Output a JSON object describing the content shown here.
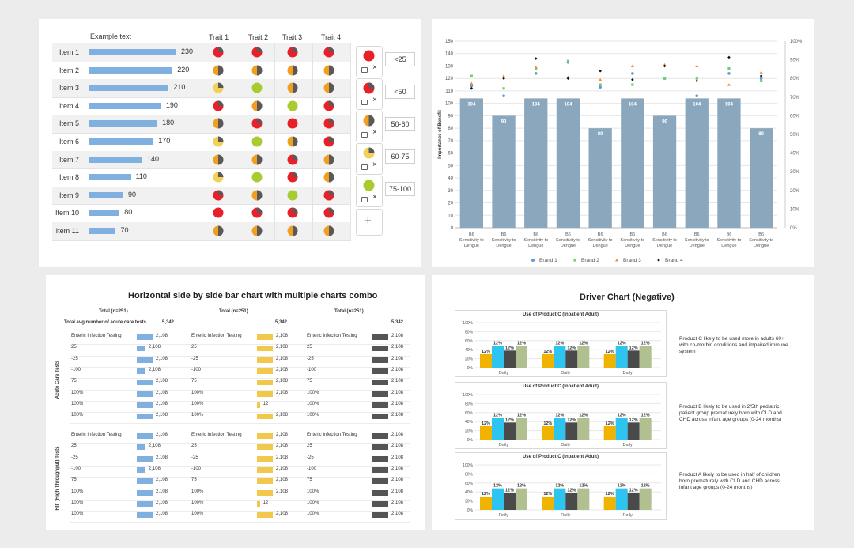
{
  "colors": {
    "bar_blue": "#7fb0e0",
    "red": "#e8202a",
    "orange": "#f0a020",
    "yellow": "#f2d05a",
    "green": "#a8cc30",
    "gray": "#595959",
    "mid_bar": "#8aa7be",
    "mid_brand1": "#5b9bd5",
    "mid_brand2": "#70d070",
    "mid_brand3": "#f08c40",
    "mid_brand4": "#111111",
    "hbar_blue": "#7fb0e0",
    "hbar_yellow": "#f2c84b",
    "hbar_dark": "#555555",
    "drv_yellow": "#f0b400",
    "drv_cyan": "#2ec4f0",
    "drv_dark": "#4a4a4a",
    "drv_sage": "#b0c090"
  },
  "panel1": {
    "header": "Example text",
    "trait_headers": [
      "Trait 1",
      "Trait 2",
      "Trait 3",
      "Trait 4"
    ],
    "rows": [
      {
        "label": "Item 1",
        "value": 230,
        "traits": [
          "dark-red",
          "dark-red",
          "dark-red",
          "dark-red"
        ]
      },
      {
        "label": "Item 2",
        "value": 220,
        "traits": [
          "gray-orange",
          "gray-orange",
          "gray-orange",
          "gray-orange"
        ]
      },
      {
        "label": "Item 3",
        "value": 210,
        "traits": [
          "yellow-gray",
          "green",
          "gray-orange",
          "gray-orange"
        ]
      },
      {
        "label": "Item 4",
        "value": 190,
        "traits": [
          "dark-red",
          "gray-orange",
          "green",
          "dark-red"
        ]
      },
      {
        "label": "Item 5",
        "value": 180,
        "traits": [
          "gray-orange",
          "dark-red",
          "red",
          "dark-red"
        ]
      },
      {
        "label": "Item 6",
        "value": 170,
        "traits": [
          "yellow-gray",
          "green",
          "gray-orange",
          "dark-red"
        ]
      },
      {
        "label": "Item 7",
        "value": 140,
        "traits": [
          "gray-orange",
          "gray-orange",
          "dark-red",
          "gray-orange"
        ]
      },
      {
        "label": "Item 8",
        "value": 110,
        "traits": [
          "yellow-gray",
          "green",
          "dark-red",
          "gray-orange"
        ]
      },
      {
        "label": "Item 9",
        "value": 90,
        "traits": [
          "dark-red",
          "gray-orange",
          "green",
          "dark-red"
        ]
      },
      {
        "label": "Item 10",
        "value": 80,
        "traits": [
          "red",
          "dark-red",
          "dark-red",
          "dark-red"
        ]
      },
      {
        "label": "Item 11",
        "value": 70,
        "traits": [
          "gray-orange",
          "gray-orange",
          "gray-orange",
          "gray-orange"
        ]
      }
    ],
    "legend": [
      {
        "range": "<25",
        "pie": "red"
      },
      {
        "range": "<50",
        "pie": "dark-red"
      },
      {
        "range": "50-60",
        "pie": "gray-orange"
      },
      {
        "range": "60-75",
        "pie": "yellow-gray"
      },
      {
        "range": "75-100",
        "pie": "green"
      }
    ],
    "add_symbol": "+"
  },
  "chart_data": [
    {
      "type": "bar",
      "title": "",
      "ylabel": "Importance of Benefit",
      "ylim": [
        0,
        150
      ],
      "y2lim": [
        0,
        100
      ],
      "yticks": [
        "0",
        "10",
        "20",
        "30",
        "40",
        "50",
        "60",
        "70",
        "80",
        "90",
        "100",
        "110",
        "120",
        "130",
        "140",
        "150"
      ],
      "y2ticks": [
        "0%",
        "10%",
        "20%",
        "30%",
        "40%",
        "50%",
        "60%",
        "70%",
        "80%",
        "90%",
        "100%"
      ],
      "categories": [
        "B6 Sensitivity to Dengue",
        "B6 Sensitivity to Dengue",
        "B6 Sensitivity to Dengue",
        "B6 Sensitivity to Dengue",
        "B6 Sensitivity to Dengue",
        "B6 Sensitivity to Dengue",
        "B6 Sensitivity to Dengue",
        "B6 Sensitivity to Dengue",
        "B6 Sensitivity to Dengue",
        "B6 Sensitivity to Dengue"
      ],
      "values": [
        104,
        90,
        104,
        104,
        80,
        104,
        90,
        104,
        104,
        80
      ],
      "scatter_series": [
        {
          "name": "Brand 1",
          "values": [
            114,
            106,
            124,
            133,
            113,
            124,
            120,
            106,
            124,
            120
          ]
        },
        {
          "name": "Brand 2",
          "values": [
            122,
            112,
            128,
            134,
            115,
            115,
            120,
            120,
            128,
            118
          ]
        },
        {
          "name": "Brand 3",
          "values": [
            116,
            122,
            129,
            121,
            119,
            130,
            131,
            130,
            115,
            125
          ]
        },
        {
          "name": "Brand 4",
          "values": [
            112,
            120,
            136,
            120,
            126,
            119,
            130,
            118,
            137,
            122
          ]
        }
      ],
      "legend": [
        "Brand 1",
        "Brand 2",
        "Brand 3",
        "Brand 4"
      ],
      "legend_position": "bottom"
    },
    {
      "type": "bar",
      "title": "Use of Product C (Inpatient Adult)",
      "categories": [
        "Daily",
        "Daily",
        "Daily"
      ],
      "series": [
        {
          "values": [
            12,
            12,
            12
          ]
        },
        {
          "values": [
            12,
            12,
            12
          ]
        },
        {
          "values": [
            12,
            12,
            12
          ]
        },
        {
          "values": [
            12,
            12,
            12
          ]
        }
      ],
      "yticks": [
        "0%",
        "20%",
        "40%",
        "60%",
        "80%",
        "100%"
      ],
      "ylim": [
        0,
        100
      ]
    },
    {
      "type": "bar",
      "title": "Use of Product C (Inpatient Adult)",
      "categories": [
        "Daily",
        "Daily",
        "Daily"
      ],
      "series": [
        {
          "values": [
            12,
            12,
            12
          ]
        },
        {
          "values": [
            12,
            12,
            12
          ]
        },
        {
          "values": [
            12,
            12,
            12
          ]
        },
        {
          "values": [
            12,
            12,
            12
          ]
        }
      ],
      "yticks": [
        "0%",
        "20%",
        "40%",
        "60%",
        "80%",
        "100%"
      ],
      "ylim": [
        0,
        100
      ]
    },
    {
      "type": "bar",
      "title": "Use of Product C (Inpatient Adult)",
      "categories": [
        "Daily",
        "Daily",
        "Daily"
      ],
      "series": [
        {
          "values": [
            12,
            12,
            12
          ]
        },
        {
          "values": [
            12,
            12,
            12
          ]
        },
        {
          "values": [
            12,
            12,
            12
          ]
        },
        {
          "values": [
            12,
            12,
            12
          ]
        }
      ],
      "yticks": [
        "0%",
        "20%",
        "40%",
        "60%",
        "80%",
        "100%"
      ],
      "ylim": [
        0,
        100
      ]
    }
  ],
  "panel3": {
    "title": "Horizontal side by side bar chart with multiple charts combo",
    "total_label": "Total",
    "n_label": "(n=251)",
    "total_avg_label": "Total avg number of acute care tests",
    "total_avg_value": "5,342",
    "groups": [
      {
        "name": "Acute Care Tests",
        "rows": [
          {
            "label": "Enteric Infection Testing",
            "values": [
              "2,108",
              "2,108",
              "2,108"
            ],
            "fracs": [
              0.55,
              0.55,
              0.55
            ]
          },
          {
            "label": "25",
            "values": [
              "2,108",
              "2,108",
              "2,108"
            ],
            "fracs": [
              0.3,
              0.55,
              0.55
            ]
          },
          {
            "label": "-25",
            "values": [
              "2,108",
              "2,108",
              "2,108"
            ],
            "fracs": [
              0.55,
              0.55,
              0.55
            ]
          },
          {
            "label": "-100",
            "values": [
              "2,108",
              "2,108",
              "2,108"
            ],
            "fracs": [
              0.3,
              0.55,
              0.55
            ]
          },
          {
            "label": "75",
            "values": [
              "2,108",
              "2,108",
              "2,108"
            ],
            "fracs": [
              0.55,
              0.55,
              0.55
            ]
          },
          {
            "label": "100%",
            "values": [
              "2,108",
              "2,108",
              "2,108"
            ],
            "fracs": [
              0.55,
              0.55,
              0.55
            ]
          },
          {
            "label": "100%",
            "values": [
              "2,108",
              "12",
              "2,108"
            ],
            "fracs": [
              0.55,
              0.1,
              0.55
            ]
          },
          {
            "label": "100%",
            "values": [
              "2,108",
              "2,108",
              "2,108"
            ],
            "fracs": [
              0.55,
              0.55,
              0.55
            ]
          }
        ]
      },
      {
        "name": "HIT (High Throughput) Tests",
        "rows": [
          {
            "label": "Enteric Infection Testing",
            "values": [
              "2,108",
              "2,108",
              "2,108"
            ],
            "fracs": [
              0.55,
              0.55,
              0.55
            ]
          },
          {
            "label": "25",
            "values": [
              "2,108",
              "2,108",
              "2,108"
            ],
            "fracs": [
              0.3,
              0.55,
              0.55
            ]
          },
          {
            "label": "-25",
            "values": [
              "2,108",
              "2,108",
              "2,108"
            ],
            "fracs": [
              0.55,
              0.55,
              0.55
            ]
          },
          {
            "label": "-100",
            "values": [
              "2,108",
              "2,108",
              "2,108"
            ],
            "fracs": [
              0.3,
              0.55,
              0.55
            ]
          },
          {
            "label": "75",
            "values": [
              "2,108",
              "2,108",
              "2,108"
            ],
            "fracs": [
              0.55,
              0.55,
              0.55
            ]
          },
          {
            "label": "100%",
            "values": [
              "2,108",
              "2,108",
              "2,108"
            ],
            "fracs": [
              0.55,
              0.55,
              0.55
            ]
          },
          {
            "label": "100%",
            "values": [
              "2,108",
              "12",
              "2,108"
            ],
            "fracs": [
              0.55,
              0.1,
              0.55
            ]
          },
          {
            "label": "100%",
            "values": [
              "2,108",
              "2,108",
              "2,108"
            ],
            "fracs": [
              0.55,
              0.55,
              0.55
            ]
          }
        ]
      }
    ]
  },
  "panel4": {
    "title": "Driver Chart (Negative)",
    "notes": [
      "Product C likely to be used more in adults 60+ with co-morbid conditions  and impaired immune system",
      "Product B likely to be used in 2/5th pediatric patient group prematurely born with CLD and CHD across infant age groups (0-24 months)",
      "Product A likely to be used in half of children born prematurely with CLD and CHD across infant age groups (0-24 months)"
    ]
  }
}
